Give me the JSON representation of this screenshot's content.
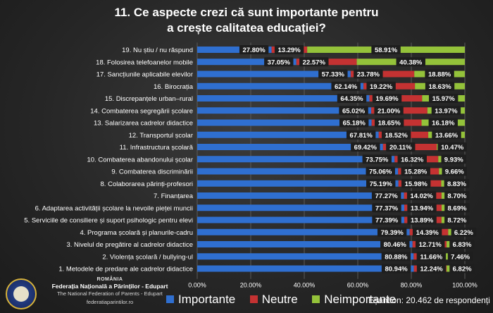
{
  "title": {
    "line1": "11. Ce aspecte crezi că sunt importante pentru",
    "line2": "a crește calitatea educației?"
  },
  "chart_data": {
    "type": "bar",
    "stacked": true,
    "orientation": "horizontal",
    "xlim": [
      0,
      100
    ],
    "x_ticks": [
      "0.00%",
      "20.00%",
      "40.00%",
      "60.00%",
      "80.00%",
      "100.00%"
    ],
    "categories": [
      "19. Nu știu / nu răspund",
      "18. Folosirea telefoanelor mobile",
      "17. Sancțiunile aplicabile elevilor",
      "16. Birocrația",
      "15. Discrepanțele urban–rural",
      "14. Combaterea segregării școlare",
      "13. Salarizarea cadrelor didactice",
      "12. Transportul școlar",
      "11. Infrastructura școlară",
      "10. Combaterea abandonului școlar",
      "9. Combaterea discriminării",
      "8. Colaborarea părinți-profesori",
      "7. Finanțarea",
      "6. Adaptarea activității școlare la nevoile pieței muncii",
      "5. Serviciile de consiliere și suport psihologic pentru elevi",
      "4. Programa școlară și planurile-cadru",
      "3. Nivelul de pregătire al cadrelor didactice",
      "2. Violența școlară / bullying-ul",
      "1. Metodele de predare ale cadrelor didactice"
    ],
    "series": [
      {
        "name": "Importante",
        "color": "#2f6fd0",
        "values": [
          27.8,
          37.05,
          57.33,
          62.14,
          64.35,
          65.02,
          65.18,
          67.81,
          69.42,
          73.75,
          75.06,
          75.19,
          77.27,
          77.37,
          77.39,
          79.39,
          80.46,
          80.88,
          80.94
        ],
        "labels": [
          "27.80%",
          "37.05%",
          "57.33%",
          "62.14%",
          "64.35%",
          "65.02%",
          "65.18%",
          "67.81%",
          "69.42%",
          "73.75%",
          "75.06%",
          "75.19%",
          "77.27%",
          "77.37%",
          "77.39%",
          "79.39%",
          "80.46%",
          "80.88%",
          "80.94%"
        ]
      },
      {
        "name": "Neutre",
        "color": "#c43232",
        "values": [
          13.29,
          22.57,
          23.78,
          19.22,
          19.69,
          21.0,
          18.65,
          18.52,
          20.11,
          16.32,
          15.28,
          15.98,
          14.02,
          13.94,
          13.89,
          14.39,
          12.71,
          11.66,
          12.24
        ],
        "labels": [
          "13.29%",
          "22.57%",
          "23.78%",
          "19.22%",
          "19.69%",
          "21.00%",
          "18.65%",
          "18.52%",
          "20.11%",
          "16.32%",
          "15.28%",
          "15.98%",
          "14.02%",
          "13.94%",
          "13.89%",
          "14.39%",
          "12.71%",
          "11.66%",
          "12.24%"
        ]
      },
      {
        "name": "Neimportante",
        "color": "#94c23a",
        "values": [
          58.91,
          40.38,
          18.88,
          18.63,
          15.97,
          13.97,
          16.18,
          13.66,
          10.47,
          9.93,
          9.66,
          8.83,
          8.7,
          8.69,
          8.72,
          6.22,
          6.83,
          7.46,
          6.82
        ],
        "labels": [
          "58.91%",
          "40.38%",
          "18.88%",
          "18.63%",
          "15.97%",
          "13.97%",
          "16.18%",
          "13.66%",
          "10.47%",
          "9.93%",
          "9.66%",
          "8.83%",
          "8.70%",
          "8.69%",
          "8.72%",
          "6.22%",
          "6.83%",
          "7.46%",
          "6.82%"
        ]
      }
    ],
    "legend_position": "bottom",
    "grid": true
  },
  "legend": {
    "items": [
      {
        "label": "Importante",
        "color": "#2f6fd0"
      },
      {
        "label": "Neutre",
        "color": "#c43232"
      },
      {
        "label": "Neimportante",
        "color": "#94c23a"
      }
    ]
  },
  "sample_text": "Eșantion: 20.462 de respondenți",
  "logo": {
    "country": "ROMÂNIA",
    "name_ro": "Federația Națională a Părinților - Edupart",
    "name_en": "The National Federation of Parents - Edupart",
    "website": "federatiaparintilor.ro"
  }
}
